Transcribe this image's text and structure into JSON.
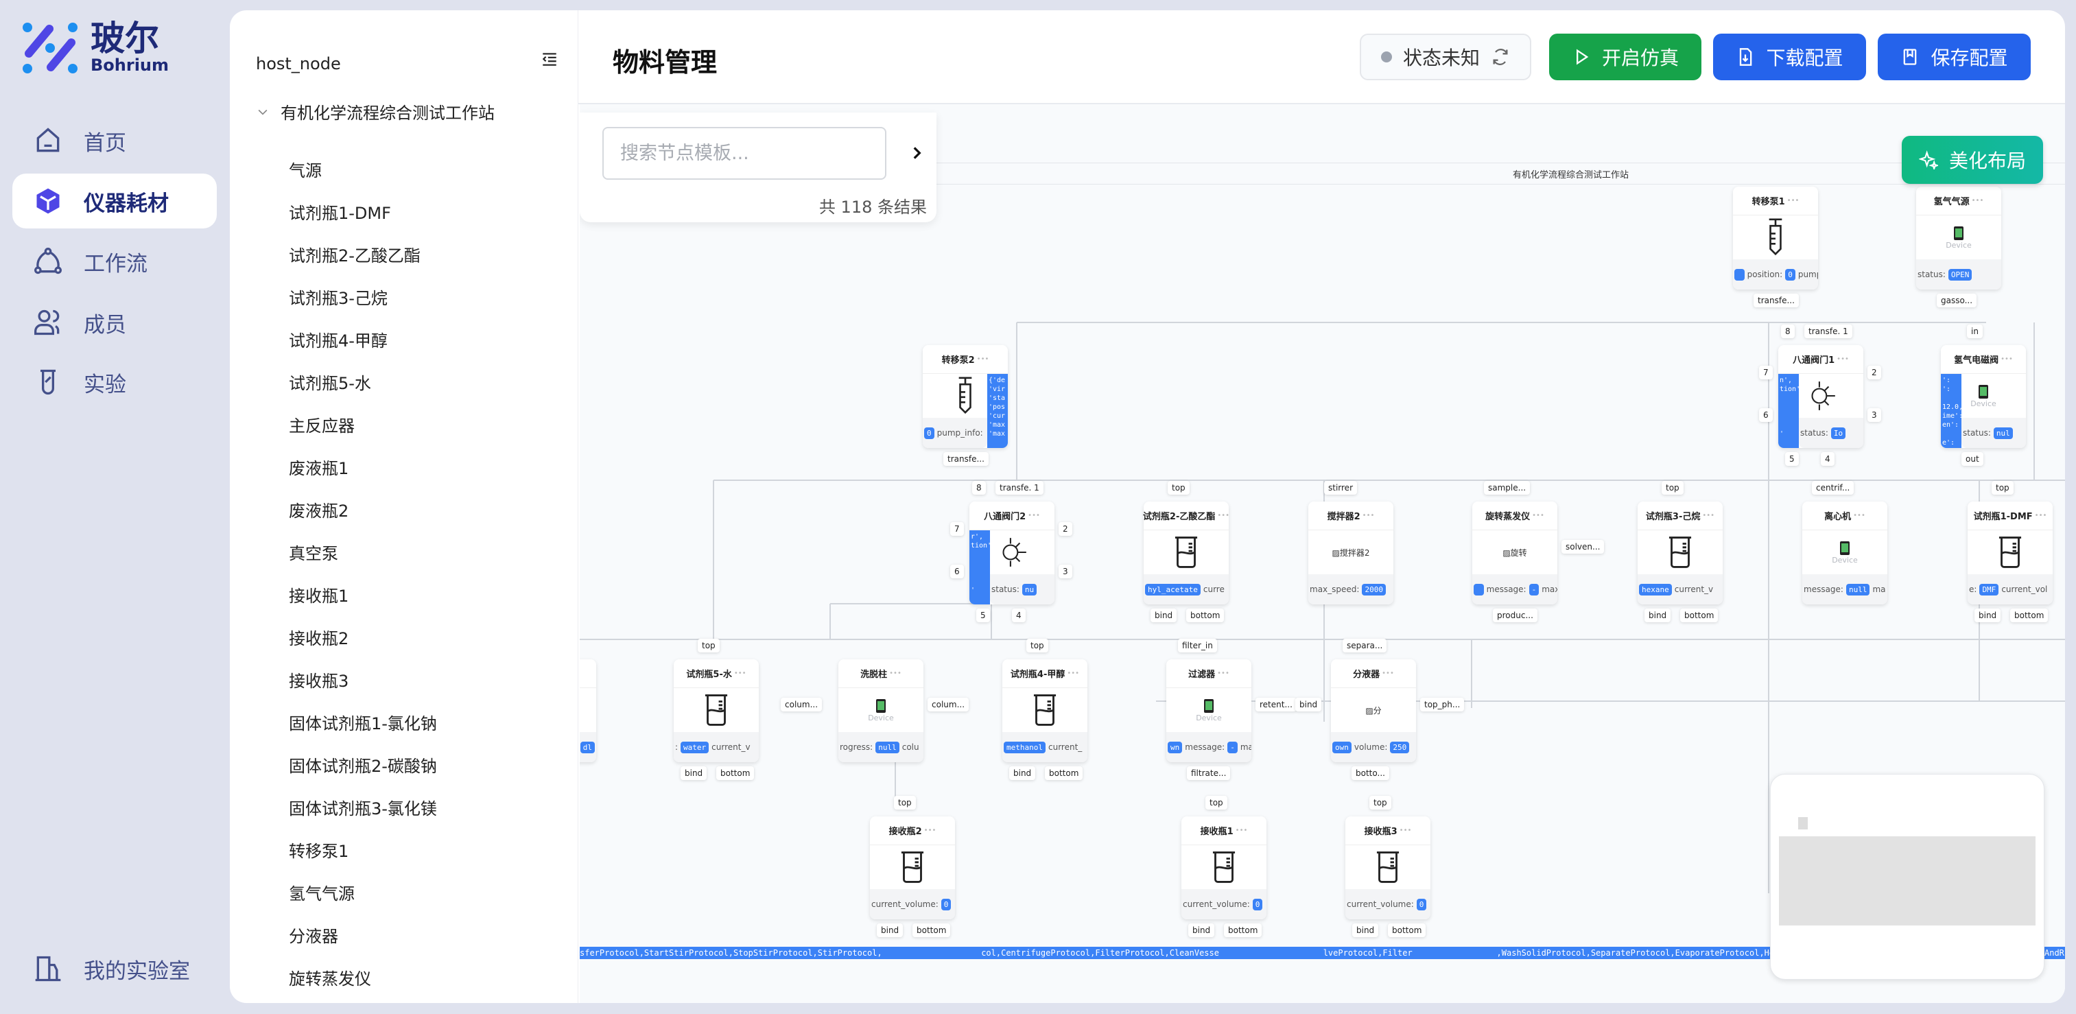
{
  "brand": {
    "name_cn": "玻尔",
    "name_en": "Bohrium"
  },
  "nav": {
    "items": [
      {
        "label": "首页",
        "icon": "home-icon"
      },
      {
        "label": "仪器耗材",
        "icon": "cube-icon",
        "active": true
      },
      {
        "label": "工作流",
        "icon": "workflow-icon"
      },
      {
        "label": "成员",
        "icon": "users-icon"
      },
      {
        "label": "实验",
        "icon": "beaker-icon"
      }
    ],
    "bottom": {
      "label": "我的实验室",
      "icon": "lab-building-icon"
    }
  },
  "tree": {
    "root": "host_node",
    "group": "有机化学流程综合测试工作站",
    "items": [
      "气源",
      "试剂瓶1-DMF",
      "试剂瓶2-乙酸乙酯",
      "试剂瓶3-己烷",
      "试剂瓶4-甲醇",
      "试剂瓶5-水",
      "主反应器",
      "废液瓶1",
      "废液瓶2",
      "真空泵",
      "接收瓶1",
      "接收瓶2",
      "接收瓶3",
      "固体试剂瓶1-氯化钠",
      "固体试剂瓶2-碳酸钠",
      "固体试剂瓶3-氯化镁",
      "转移泵1",
      "氢气气源",
      "分液器",
      "旋转蒸发仪"
    ]
  },
  "header": {
    "title": "物料管理",
    "status": "状态未知",
    "start_sim": "开启仿真",
    "download": "下载配置",
    "save": "保存配置"
  },
  "colors": {
    "green": "#16a34a",
    "blue": "#2563eb",
    "teal": "#14b8a6",
    "chip": "#3b82f6"
  },
  "canvas": {
    "search_placeholder": "搜索节点模板...",
    "result_count": "共 118 条结果",
    "beautify": "美化布局",
    "group_title": "有机化学流程综合测试工作站",
    "protocol_strip": "sferProtocol,StartStirProtocol,StopStirProtocol,StirProtocol,                    col,CentrifugeProtocol,FilterProtocol,CleanVesse                     lveProtocol,Filter                 ,WashSolidProtocol,SeparateProtocol,EvaporateProtocol,HeatChillProtoc",
    "protocol_strip_tail": "AndR",
    "nodes": [
      {
        "title": "转移泵1",
        "icon": "syringe",
        "footer": [
          [
            "",
            ""
          ],
          [
            "position:",
            "0"
          ],
          [
            "pump",
            ""
          ]
        ],
        "ports": {
          "bottom": [
            "transfe..."
          ]
        }
      },
      {
        "title": "氢气气源",
        "icon": "device",
        "device": "Device",
        "footer": [
          [
            "status:",
            "OPEN"
          ]
        ],
        "ports": {
          "bottom": [
            "gasso..."
          ]
        }
      },
      {
        "title": "转移泵2",
        "icon": "syringe",
        "side_right": "{'de\n'vir\n'sta\n'pos\n'cur\n'max\n'max",
        "footer": [
          [
            "",
            "0"
          ],
          [
            "pump_info:",
            ""
          ]
        ],
        "ports": {
          "bottom": [
            "transfe..."
          ]
        }
      },
      {
        "title": "八通阀门1",
        "icon": "valve",
        "side_left": "n',\ntion':\n\n\n\n\n'",
        "footer": [
          [
            "status:",
            "Io"
          ]
        ],
        "ports": {
          "top": [
            "8",
            "transfe. 1"
          ],
          "left": [
            "7",
            "6"
          ],
          "right": [
            "2",
            "3"
          ],
          "bottom": [
            "5",
            "4"
          ]
        }
      },
      {
        "title": "氢气电磁阀",
        "icon": "device",
        "device": "Device",
        "side_left": "':\n':\n\n12.0,\nime':\nen':\n\ne':",
        "footer": [
          [
            "status:",
            "nul"
          ]
        ],
        "ports": {
          "top": [
            "in"
          ],
          "bottom": [
            "out"
          ]
        }
      },
      {
        "title": "八通阀门2",
        "icon": "valve",
        "side_left": "r',\ntion':\n\n\n\n\n'",
        "footer": [
          [
            "status:",
            "nu"
          ]
        ],
        "ports": {
          "top": [
            "8",
            "transfe. 1"
          ],
          "left": [
            "7",
            "6"
          ],
          "right": [
            "2",
            "3"
          ],
          "bottom": [
            "5",
            "4"
          ]
        }
      },
      {
        "title": "试剂瓶2-乙酸乙酯",
        "icon": "beaker",
        "footer": [
          [
            "",
            "hyl_acetate"
          ],
          [
            "curre",
            ""
          ]
        ],
        "ports": {
          "top": [
            "top"
          ],
          "bottom": [
            "bind",
            "bottom"
          ]
        }
      },
      {
        "title": "搅拌器2",
        "icon": "broken",
        "broken": "搅拌器2",
        "footer": [
          [
            "max_speed:",
            "2000"
          ]
        ],
        "ports": {
          "top": [
            "stirrer"
          ]
        }
      },
      {
        "title": "旋转蒸发仪",
        "icon": "broken",
        "broken": "旋转",
        "footer": [
          [
            "",
            ""
          ],
          [
            "message:",
            "-"
          ],
          [
            "max_",
            ""
          ]
        ],
        "ports": {
          "top": [
            "sample..."
          ],
          "right": [
            "solven..."
          ],
          "bottom": [
            "produc..."
          ]
        }
      },
      {
        "title": "试剂瓶3-己烷",
        "icon": "beaker",
        "footer": [
          [
            "",
            "hexane"
          ],
          [
            "current_v",
            ""
          ]
        ],
        "ports": {
          "top": [
            "top"
          ],
          "bottom": [
            "bind",
            "bottom"
          ]
        }
      },
      {
        "title": "离心机",
        "icon": "device",
        "device": "Device",
        "footer": [
          [
            "message:",
            "null"
          ],
          [
            "ma",
            ""
          ]
        ],
        "ports": {
          "top": [
            "centrif..."
          ]
        }
      },
      {
        "title": "试剂瓶1-DMF",
        "icon": "beaker",
        "footer": [
          [
            "e:",
            "DMF"
          ],
          [
            "current_vol",
            ""
          ]
        ],
        "ports": {
          "top": [
            "top"
          ],
          "bottom": [
            "bind",
            "bottom"
          ]
        }
      },
      {
        "title": "",
        "icon": "none",
        "footer": [
          [
            "",
            "dl"
          ]
        ],
        "ports": {}
      },
      {
        "title": "试剂瓶5-水",
        "icon": "beaker",
        "footer": [
          [
            ":",
            "water"
          ],
          [
            "current_v",
            ""
          ]
        ],
        "ports": {
          "top": [
            "top"
          ],
          "bottom": [
            "bind",
            "bottom"
          ]
        }
      },
      {
        "title": "洗脱柱",
        "icon": "device",
        "device": "Device",
        "footer": [
          [
            "rogress:",
            "null"
          ],
          [
            "colu",
            ""
          ]
        ],
        "ports": {
          "left": [
            "colum..."
          ],
          "right": [
            "colum..."
          ]
        }
      },
      {
        "title": "试剂瓶4-甲醇",
        "icon": "beaker",
        "footer": [
          [
            "",
            "methanol"
          ],
          [
            "current_",
            ""
          ]
        ],
        "ports": {
          "top": [
            "top"
          ],
          "bottom": [
            "bind",
            "bottom"
          ]
        }
      },
      {
        "title": "过滤器",
        "icon": "device",
        "device": "Device",
        "footer": [
          [
            "",
            "wn"
          ],
          [
            "message:",
            "-"
          ],
          [
            "ma",
            ""
          ]
        ],
        "ports": {
          "top": [
            "filter_in"
          ],
          "right": [
            "retent..."
          ],
          "bottom": [
            "filtrate..."
          ]
        }
      },
      {
        "title": "分液器",
        "icon": "broken",
        "broken": "分",
        "footer": [
          [
            "",
            "own"
          ],
          [
            "volume:",
            "250"
          ]
        ],
        "ports": {
          "top": [
            "separa..."
          ],
          "left": [
            "bind"
          ],
          "right": [
            "top_ph..."
          ],
          "bottom": [
            "botto..."
          ]
        }
      },
      {
        "title": "接收瓶2",
        "icon": "beaker",
        "footer": [
          [
            "current_volume:",
            "0"
          ]
        ],
        "ports": {
          "top": [
            "top"
          ],
          "bottom": [
            "bind",
            "bottom"
          ]
        }
      },
      {
        "title": "接收瓶1",
        "icon": "beaker",
        "footer": [
          [
            "current_volume:",
            "0"
          ]
        ],
        "ports": {
          "top": [
            "top"
          ],
          "bottom": [
            "bind",
            "bottom"
          ]
        }
      },
      {
        "title": "接收瓶3",
        "icon": "beaker",
        "footer": [
          [
            "current_volume:",
            "0"
          ]
        ],
        "ports": {
          "top": [
            "top"
          ],
          "bottom": [
            "bind",
            "bottom"
          ]
        }
      }
    ]
  }
}
